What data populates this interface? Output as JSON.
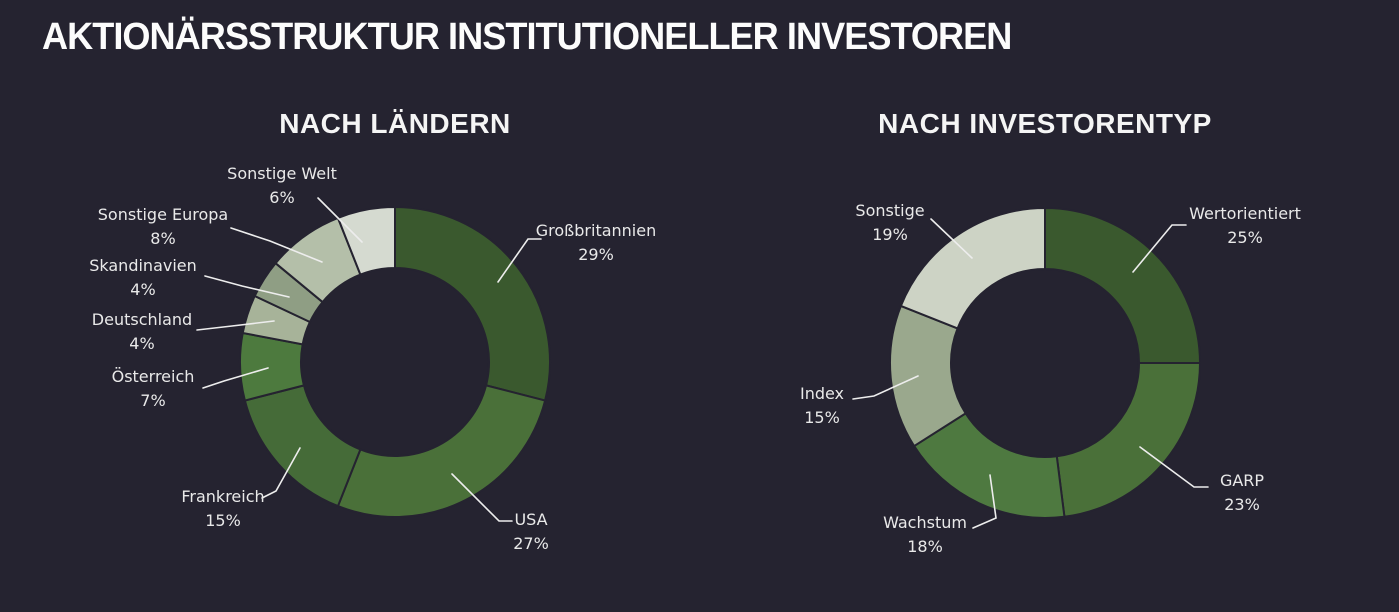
{
  "page": {
    "title": "AKTIONÄRSSTRUKTUR INSTITUTIONELLER INVESTOREN",
    "background_color": "#252330",
    "text_color": "#F2F2F2",
    "leader_line_color": "#EDEDED"
  },
  "chart_data": [
    {
      "type": "pie",
      "subtype": "donut",
      "title": "NACH LÄNDERN",
      "unit": "%",
      "start_angle_deg": 0,
      "direction": "clockwise",
      "legend": "none",
      "label_style": "outside-with-leader-lines",
      "segments": [
        {
          "label": "Großbritannien",
          "value": 29,
          "pct_label": "29%",
          "color": "#3A592E"
        },
        {
          "label": "USA",
          "value": 27,
          "pct_label": "27%",
          "color": "#4A7039"
        },
        {
          "label": "Frankreich",
          "value": 15,
          "pct_label": "15%",
          "color": "#456B38"
        },
        {
          "label": "Österreich",
          "value": 7,
          "pct_label": "7%",
          "color": "#4D7A3E"
        },
        {
          "label": "Deutschland",
          "value": 4,
          "pct_label": "4%",
          "color": "#A7B399"
        },
        {
          "label": "Skandinavien",
          "value": 4,
          "pct_label": "4%",
          "color": "#8F9E84"
        },
        {
          "label": "Sonstige Europa",
          "value": 8,
          "pct_label": "8%",
          "color": "#B4BFA9"
        },
        {
          "label": "Sonstige Welt",
          "value": 6,
          "pct_label": "6%",
          "color": "#D5DAD0"
        }
      ]
    },
    {
      "type": "pie",
      "subtype": "donut",
      "title": "NACH INVESTORENTYP",
      "unit": "%",
      "start_angle_deg": 0,
      "direction": "clockwise",
      "legend": "none",
      "label_style": "outside-with-leader-lines",
      "segments": [
        {
          "label": "Wertorientiert",
          "value": 25,
          "pct_label": "25%",
          "color": "#3A592E"
        },
        {
          "label": "GARP",
          "value": 23,
          "pct_label": "23%",
          "color": "#4A7039"
        },
        {
          "label": "Wachstum",
          "value": 18,
          "pct_label": "18%",
          "color": "#4E7940"
        },
        {
          "label": "Index",
          "value": 15,
          "pct_label": "15%",
          "color": "#9AA88D"
        },
        {
          "label": "Sonstige",
          "value": 19,
          "pct_label": "19%",
          "color": "#CDD3C5"
        }
      ]
    }
  ]
}
